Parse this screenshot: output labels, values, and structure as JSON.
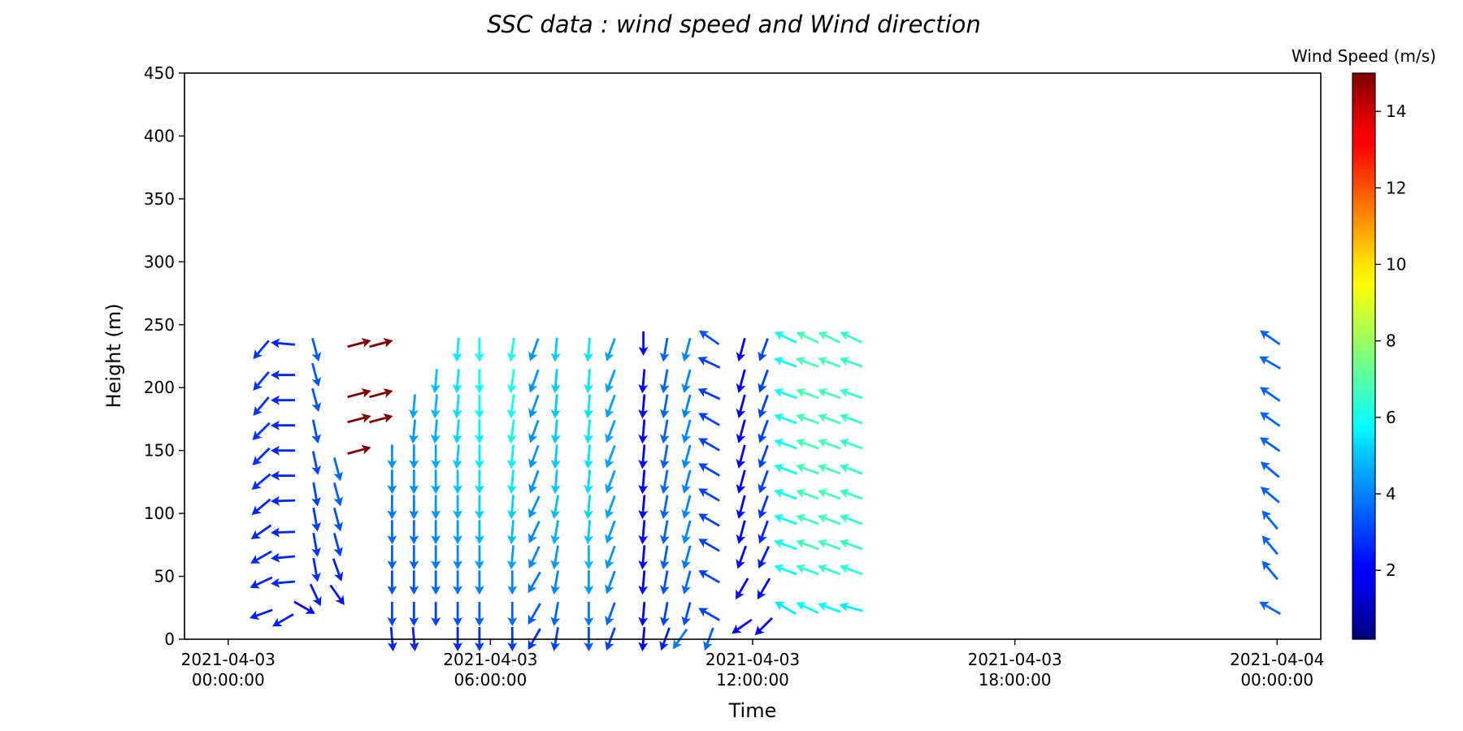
{
  "chart_data": {
    "type": "quiver",
    "title": "SSC data : wind speed and Wind direction",
    "xlabel": "Time",
    "ylabel": "Height (m)",
    "xlim": [
      "2021-04-02 23:00:00",
      "2021-04-04 01:00:00"
    ],
    "ylim": [
      0,
      450
    ],
    "x_ticks": [
      {
        "value": "2021-04-03 00:00:00",
        "line1": "2021-04-03",
        "line2": "00:00:00"
      },
      {
        "value": "2021-04-03 06:00:00",
        "line1": "2021-04-03",
        "line2": "06:00:00"
      },
      {
        "value": "2021-04-03 12:00:00",
        "line1": "2021-04-03",
        "line2": "12:00:00"
      },
      {
        "value": "2021-04-03 18:00:00",
        "line1": "2021-04-03",
        "line2": "18:00:00"
      },
      {
        "value": "2021-04-04 00:00:00",
        "line1": "2021-04-04",
        "line2": "00:00:00"
      }
    ],
    "y_ticks": [
      0,
      50,
      100,
      150,
      200,
      250,
      300,
      350,
      400,
      450
    ],
    "colorbar": {
      "label": "Wind Speed (m/s)",
      "colormap": "jet",
      "range": [
        0.2,
        15
      ],
      "ticks": [
        2,
        4,
        6,
        8,
        10,
        12,
        14
      ]
    },
    "grid": false,
    "columns": [
      {
        "time": "2021-04-03 00:45",
        "heights": [
          20,
          45,
          65,
          85,
          105,
          125,
          145,
          165,
          185,
          205,
          230
        ],
        "speeds": [
          2.5,
          2.5,
          2.6,
          2.6,
          2.6,
          2.7,
          2.7,
          2.8,
          2.8,
          2.8,
          2.8
        ],
        "directions": [
          70,
          65,
          60,
          55,
          50,
          50,
          45,
          45,
          40,
          40,
          40
        ]
      },
      {
        "time": "2021-04-03 01:15",
        "heights": [
          15,
          45,
          65,
          85,
          110,
          130,
          150,
          170,
          190,
          210,
          235
        ],
        "speeds": [
          2.5,
          2.6,
          2.6,
          2.6,
          2.6,
          2.6,
          2.6,
          2.6,
          2.6,
          2.6,
          2.6
        ],
        "directions": [
          60,
          85,
          85,
          88,
          88,
          90,
          90,
          90,
          90,
          90,
          95
        ]
      },
      {
        "time": "2021-04-03 01:45",
        "heights": [
          25
        ],
        "speeds": [
          2.0
        ],
        "directions": [
          300
        ]
      },
      {
        "time": "2021-04-03 02:00",
        "heights": [
          35,
          55,
          75,
          95,
          115,
          140,
          165,
          190,
          210,
          230
        ],
        "speeds": [
          2.5,
          2.7,
          2.8,
          2.9,
          3.0,
          3.1,
          3.2,
          3.3,
          3.3,
          3.4
        ],
        "directions": [
          335,
          350,
          350,
          350,
          350,
          348,
          348,
          345,
          345,
          345
        ]
      },
      {
        "time": "2021-04-03 02:30",
        "heights": [
          35,
          55,
          75,
          95,
          115,
          135
        ],
        "speeds": [
          2.3,
          2.5,
          3.0,
          3.2,
          3.4,
          3.6
        ],
        "directions": [
          325,
          340,
          345,
          345,
          345,
          345
        ]
      },
      {
        "time": "2021-04-03 03:00",
        "heights": [
          150,
          175,
          195,
          235
        ],
        "speeds": [
          15,
          15,
          15,
          15
        ],
        "directions": [
          255,
          255,
          255,
          255
        ]
      },
      {
        "time": "2021-04-03 03:30",
        "heights": [
          175,
          195,
          235
        ],
        "speeds": [
          15,
          15,
          15
        ],
        "directions": [
          255,
          255,
          255
        ]
      },
      {
        "time": "2021-04-03 03:45",
        "heights": [
          0,
          20,
          45,
          65,
          85,
          105,
          125,
          145
        ],
        "speeds": [
          2.5,
          3.0,
          3.2,
          3.4,
          3.6,
          3.8,
          4.0,
          4.2
        ],
        "directions": [
          355,
          0,
          0,
          0,
          0,
          0,
          0,
          0
        ]
      },
      {
        "time": "2021-04-03 04:15",
        "heights": [
          0,
          20,
          45,
          65,
          85,
          105,
          125,
          145,
          165,
          185
        ],
        "speeds": [
          2.5,
          3.0,
          3.3,
          3.5,
          3.7,
          3.9,
          4.1,
          4.2,
          4.3,
          4.4
        ],
        "directions": [
          355,
          0,
          0,
          0,
          0,
          0,
          0,
          0,
          5,
          5
        ]
      },
      {
        "time": "2021-04-03 04:45",
        "heights": [
          20,
          45,
          65,
          85,
          105,
          125,
          145,
          165,
          185,
          205
        ],
        "speeds": [
          3.0,
          3.5,
          3.8,
          4.0,
          4.2,
          4.4,
          4.5,
          4.6,
          4.7,
          4.8
        ],
        "directions": [
          0,
          0,
          0,
          0,
          0,
          0,
          0,
          5,
          5,
          5
        ]
      },
      {
        "time": "2021-04-03 05:15",
        "heights": [
          0,
          20,
          45,
          65,
          85,
          105,
          125,
          145,
          165,
          185,
          205,
          230
        ],
        "speeds": [
          2.6,
          3.2,
          3.7,
          4.0,
          4.3,
          4.6,
          4.9,
          5.0,
          5.2,
          5.3,
          5.4,
          5.5
        ],
        "directions": [
          0,
          0,
          0,
          0,
          0,
          0,
          0,
          5,
          5,
          5,
          5,
          5
        ]
      },
      {
        "time": "2021-04-03 05:45",
        "heights": [
          0,
          20,
          45,
          65,
          85,
          105,
          125,
          145,
          165,
          185,
          205,
          230
        ],
        "speeds": [
          2.8,
          3.4,
          3.9,
          4.3,
          4.7,
          5.0,
          5.3,
          5.5,
          5.6,
          5.7,
          5.8,
          5.9
        ],
        "directions": [
          0,
          0,
          0,
          0,
          0,
          0,
          0,
          0,
          0,
          0,
          0,
          0
        ]
      },
      {
        "time": "2021-04-03 06:30",
        "heights": [
          0,
          20,
          45,
          65,
          85,
          105,
          125,
          145,
          165,
          185,
          205,
          230
        ],
        "speeds": [
          2.9,
          3.5,
          4.0,
          4.4,
          4.8,
          5.1,
          5.4,
          5.6,
          5.8,
          5.9,
          6.0,
          6.1
        ],
        "directions": [
          0,
          0,
          0,
          5,
          5,
          5,
          5,
          5,
          8,
          8,
          8,
          8
        ]
      },
      {
        "time": "2021-04-03 07:00",
        "heights": [
          0,
          20,
          45,
          65,
          85,
          105,
          125,
          145,
          165,
          185,
          205,
          230
        ],
        "speeds": [
          2.8,
          3.4,
          3.8,
          4.0,
          4.1,
          4.2,
          4.2,
          4.2,
          4.2,
          4.2,
          4.2,
          4.2
        ],
        "directions": [
          30,
          30,
          30,
          25,
          25,
          25,
          20,
          20,
          20,
          20,
          20,
          20
        ]
      },
      {
        "time": "2021-04-03 07:30",
        "heights": [
          0,
          20,
          45,
          65,
          85,
          105,
          125,
          145,
          165,
          185,
          205,
          230
        ],
        "speeds": [
          3.0,
          3.5,
          4.0,
          4.3,
          4.6,
          4.8,
          4.9,
          5.0,
          5.0,
          5.0,
          5.0,
          5.0
        ],
        "directions": [
          10,
          10,
          10,
          10,
          10,
          10,
          5,
          5,
          5,
          5,
          5,
          5
        ]
      },
      {
        "time": "2021-04-03 08:15",
        "heights": [
          0,
          20,
          45,
          65,
          85,
          105,
          125,
          145,
          165,
          185,
          205,
          230
        ],
        "speeds": [
          3.2,
          3.8,
          4.3,
          4.7,
          5.0,
          5.2,
          5.3,
          5.4,
          5.4,
          5.4,
          5.4,
          5.4
        ],
        "directions": [
          0,
          0,
          0,
          0,
          5,
          5,
          5,
          5,
          5,
          5,
          5,
          5
        ]
      },
      {
        "time": "2021-04-03 08:45",
        "heights": [
          0,
          20,
          45,
          65,
          85,
          105,
          125,
          145,
          165,
          185,
          205,
          230
        ],
        "speeds": [
          3.0,
          3.5,
          4.0,
          4.2,
          4.3,
          4.4,
          4.4,
          4.4,
          4.4,
          4.4,
          4.4,
          4.4
        ],
        "directions": [
          20,
          20,
          20,
          20,
          20,
          20,
          20,
          20,
          20,
          20,
          20,
          20
        ]
      },
      {
        "time": "2021-04-03 09:30",
        "heights": [
          0,
          20,
          45,
          65,
          85,
          105,
          125,
          145,
          165,
          185,
          205,
          235
        ],
        "speeds": [
          2.0,
          2.0,
          2.0,
          2.1,
          2.1,
          2.1,
          2.1,
          2.1,
          2.1,
          2.1,
          2.1,
          2.1
        ],
        "directions": [
          5,
          5,
          5,
          5,
          5,
          5,
          5,
          5,
          5,
          5,
          5,
          0
        ]
      },
      {
        "time": "2021-04-03 10:00",
        "heights": [
          0,
          20,
          45,
          65,
          85,
          105,
          125,
          145,
          165,
          185,
          205,
          230
        ],
        "speeds": [
          2.5,
          3.0,
          3.2,
          3.4,
          3.5,
          3.5,
          3.5,
          3.5,
          3.5,
          3.5,
          3.5,
          3.5
        ],
        "directions": [
          20,
          10,
          10,
          10,
          10,
          10,
          10,
          10,
          10,
          10,
          10,
          10
        ]
      },
      {
        "time": "2021-04-03 10:20",
        "heights": [
          0
        ],
        "speeds": [
          3.8
        ],
        "directions": [
          35
        ]
      },
      {
        "time": "2021-04-03 10:30",
        "heights": [
          20,
          45,
          65,
          85,
          105,
          125,
          145,
          165,
          185,
          205,
          230
        ],
        "speeds": [
          3.2,
          3.6,
          3.8,
          4.0,
          4.0,
          4.0,
          4.0,
          4.0,
          4.0,
          4.0,
          4.0
        ],
        "directions": [
          15,
          15,
          15,
          15,
          15,
          15,
          15,
          15,
          15,
          15,
          15
        ]
      },
      {
        "time": "2021-04-03 11:00",
        "heights": [
          0,
          20,
          50,
          75,
          95,
          115,
          135,
          155,
          175,
          195,
          220,
          240
        ],
        "speeds": [
          3.5,
          3.0,
          3.0,
          3.0,
          3.0,
          3.0,
          3.0,
          3.0,
          3.0,
          3.0,
          3.0,
          3.2
        ],
        "directions": [
          20,
          120,
          120,
          120,
          120,
          120,
          120,
          120,
          120,
          115,
          115,
          125
        ]
      },
      {
        "time": "2021-04-03 11:45",
        "heights": [
          10,
          40,
          65,
          85,
          105,
          125,
          145,
          165,
          185,
          205,
          230
        ],
        "speeds": [
          2.0,
          2.0,
          2.0,
          2.0,
          2.0,
          2.0,
          2.0,
          2.0,
          2.0,
          2.0,
          2.0
        ],
        "directions": [
          55,
          30,
          20,
          15,
          15,
          15,
          15,
          15,
          15,
          15,
          15
        ]
      },
      {
        "time": "2021-04-03 12:15",
        "heights": [
          10,
          40,
          65,
          85,
          105,
          125,
          145,
          165,
          185,
          205,
          230
        ],
        "speeds": [
          2.0,
          2.2,
          2.4,
          2.6,
          2.8,
          3.0,
          3.0,
          3.0,
          3.0,
          3.0,
          3.0
        ],
        "directions": [
          45,
          30,
          25,
          20,
          20,
          20,
          20,
          20,
          20,
          20,
          20
        ]
      },
      {
        "time": "2021-04-03 12:45",
        "heights": [
          25,
          55,
          75,
          95,
          115,
          135,
          155,
          175,
          195,
          220,
          240
        ],
        "speeds": [
          5.5,
          6.0,
          6.0,
          6.0,
          6.0,
          6.0,
          6.0,
          6.0,
          6.0,
          6.0,
          6.0
        ],
        "directions": [
          120,
          110,
          110,
          110,
          110,
          110,
          110,
          110,
          110,
          110,
          115
        ]
      },
      {
        "time": "2021-04-03 13:15",
        "heights": [
          25,
          55,
          75,
          95,
          115,
          135,
          155,
          175,
          195,
          220,
          240
        ],
        "speeds": [
          5.8,
          6.5,
          6.8,
          6.8,
          6.8,
          6.8,
          6.8,
          6.8,
          6.8,
          6.8,
          6.8
        ],
        "directions": [
          115,
          110,
          110,
          110,
          110,
          110,
          110,
          110,
          110,
          110,
          115
        ]
      },
      {
        "time": "2021-04-03 13:45",
        "heights": [
          25,
          55,
          75,
          95,
          115,
          135,
          155,
          175,
          195,
          220,
          240
        ],
        "speeds": [
          5.8,
          6.5,
          6.8,
          6.8,
          6.8,
          6.8,
          6.8,
          6.8,
          6.8,
          6.8,
          6.8
        ],
        "directions": [
          110,
          110,
          110,
          110,
          110,
          110,
          110,
          110,
          110,
          110,
          115
        ]
      },
      {
        "time": "2021-04-03 14:15",
        "heights": [
          25,
          55,
          75,
          95,
          115,
          135,
          155,
          175,
          195,
          220,
          240
        ],
        "speeds": [
          5.5,
          6.3,
          6.5,
          6.5,
          6.5,
          6.5,
          6.5,
          6.5,
          6.5,
          6.5,
          6.5
        ],
        "directions": [
          105,
          110,
          110,
          110,
          110,
          110,
          110,
          110,
          110,
          110,
          115
        ]
      },
      {
        "time": "2021-04-03 23:50",
        "heights": [
          25,
          55,
          75,
          95,
          115,
          135,
          155,
          175,
          195,
          220,
          240
        ],
        "speeds": [
          3.5,
          3.5,
          3.5,
          3.5,
          3.5,
          3.5,
          3.5,
          3.5,
          3.5,
          3.5,
          3.5
        ],
        "directions": [
          120,
          140,
          140,
          140,
          130,
          130,
          125,
          125,
          125,
          120,
          125
        ]
      }
    ]
  }
}
